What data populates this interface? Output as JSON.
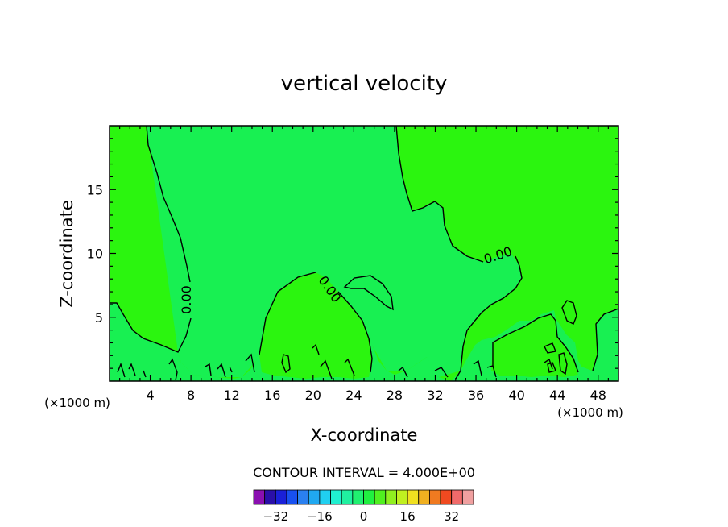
{
  "chart_data": {
    "type": "contour",
    "title": "vertical velocity",
    "xlabel": "X-coordinate",
    "ylabel": "Z-coordinate",
    "x_unit_label": "(×1000 m)",
    "xlim": [
      0,
      50
    ],
    "ylim": [
      0,
      20
    ],
    "xticks": [
      4,
      8,
      12,
      16,
      20,
      24,
      28,
      32,
      36,
      40,
      44,
      48
    ],
    "yticks": [
      5,
      10,
      15
    ],
    "contour_interval_text": "CONTOUR INTERVAL = 4.000E+00",
    "contour_label": "0.00",
    "colorbar": {
      "levels": [
        -36,
        -32,
        -28,
        -24,
        -20,
        -16,
        -12,
        -8,
        -4,
        0,
        4,
        8,
        12,
        16,
        20,
        24,
        28,
        32,
        36
      ],
      "tick_labels": [
        "-32",
        "-16",
        "0",
        "16",
        "32"
      ],
      "colors": [
        "#8a0fb0",
        "#2a0fa8",
        "#1a20d8",
        "#1850f0",
        "#2a80f0",
        "#20a8f0",
        "#20d0f0",
        "#20f0d0",
        "#20f0a0",
        "#20f070",
        "#20f040",
        "#50f020",
        "#90f020",
        "#c0f020",
        "#f0e020",
        "#f0b020",
        "#f07a20",
        "#f04a20",
        "#f06a6a",
        "#f0a0a0"
      ]
    },
    "fill_colors": {
      "positive": "#2bf50f",
      "negative": "#18f052"
    }
  }
}
